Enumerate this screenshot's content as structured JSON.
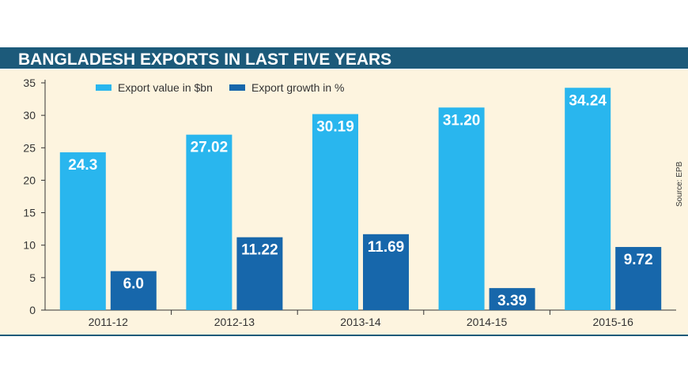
{
  "colors": {
    "header_bar": "#1c5a7a",
    "header_text": "#ffffff",
    "panel_bg": "#fdf4df",
    "bottom_rule": "#1c5a7a",
    "export_value": "#29b6ee",
    "export_growth": "#1767ab",
    "axis": "#333333",
    "label_text": "#ffffff"
  },
  "chart_data": {
    "type": "bar",
    "title": "BANGLADESH EXPORTS IN LAST FIVE YEARS",
    "source": "Source: EPB",
    "categories": [
      "2011-12",
      "2012-13",
      "2013-14",
      "2014-15",
      "2015-16"
    ],
    "series": [
      {
        "name": "Export value in $bn",
        "values": [
          24.3,
          27.02,
          30.19,
          31.2,
          34.24
        ],
        "labels": [
          "24.3",
          "27.02",
          "30.19",
          "31.20",
          "34.24"
        ]
      },
      {
        "name": "Export growth in %",
        "values": [
          6.0,
          11.22,
          11.69,
          3.39,
          9.72
        ],
        "labels": [
          "6.0",
          "11.22",
          "11.69",
          "3.39",
          "9.72"
        ]
      }
    ],
    "yticks": [
      "0",
      "5",
      "10",
      "15",
      "20",
      "25",
      "30",
      "35"
    ],
    "ylim": [
      0,
      35
    ],
    "legend_position": "top",
    "grid": false
  }
}
